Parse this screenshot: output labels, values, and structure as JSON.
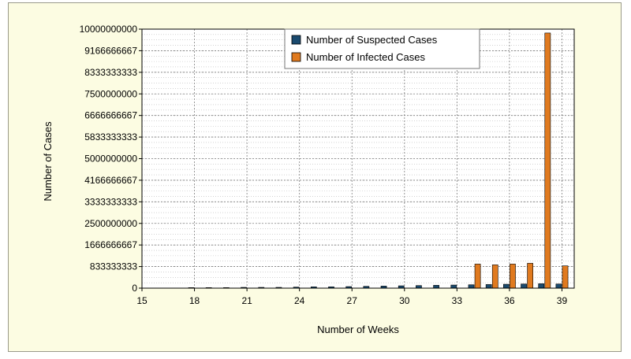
{
  "chart_data": {
    "type": "bar",
    "xlabel": "Number of Weeks",
    "ylabel": "Number of Cases",
    "xlim": [
      15,
      39.7
    ],
    "ylim": [
      0,
      10000000000
    ],
    "x_ticks": [
      15,
      18,
      21,
      24,
      27,
      30,
      33,
      36,
      39
    ],
    "y_ticks": [
      0,
      833333333,
      1666666667,
      2500000000,
      3333333333,
      4166666667,
      5000000000,
      5833333333,
      6666666667,
      7500000000,
      8333333333,
      9166666667,
      10000000000
    ],
    "grid": true,
    "legend_position": "top-right",
    "x": [
      18,
      19,
      20,
      21,
      22,
      23,
      24,
      25,
      26,
      27,
      28,
      29,
      30,
      31,
      32,
      33,
      34,
      35,
      36,
      37,
      38,
      39
    ],
    "series": [
      {
        "name": "Number of Suspected Cases",
        "color": "#1a4a6e",
        "values": [
          20000000,
          20000000,
          20000000,
          30000000,
          30000000,
          30000000,
          40000000,
          50000000,
          50000000,
          60000000,
          70000000,
          80000000,
          90000000,
          100000000,
          110000000,
          120000000,
          130000000,
          140000000,
          150000000,
          160000000,
          170000000,
          160000000
        ]
      },
      {
        "name": "Number of Infected Cases",
        "color": "#e07a1f",
        "values": [
          0,
          0,
          0,
          0,
          0,
          0,
          0,
          0,
          0,
          0,
          0,
          0,
          0,
          0,
          0,
          0,
          930000000,
          900000000,
          930000000,
          960000000,
          9850000000,
          860000000
        ]
      }
    ]
  }
}
